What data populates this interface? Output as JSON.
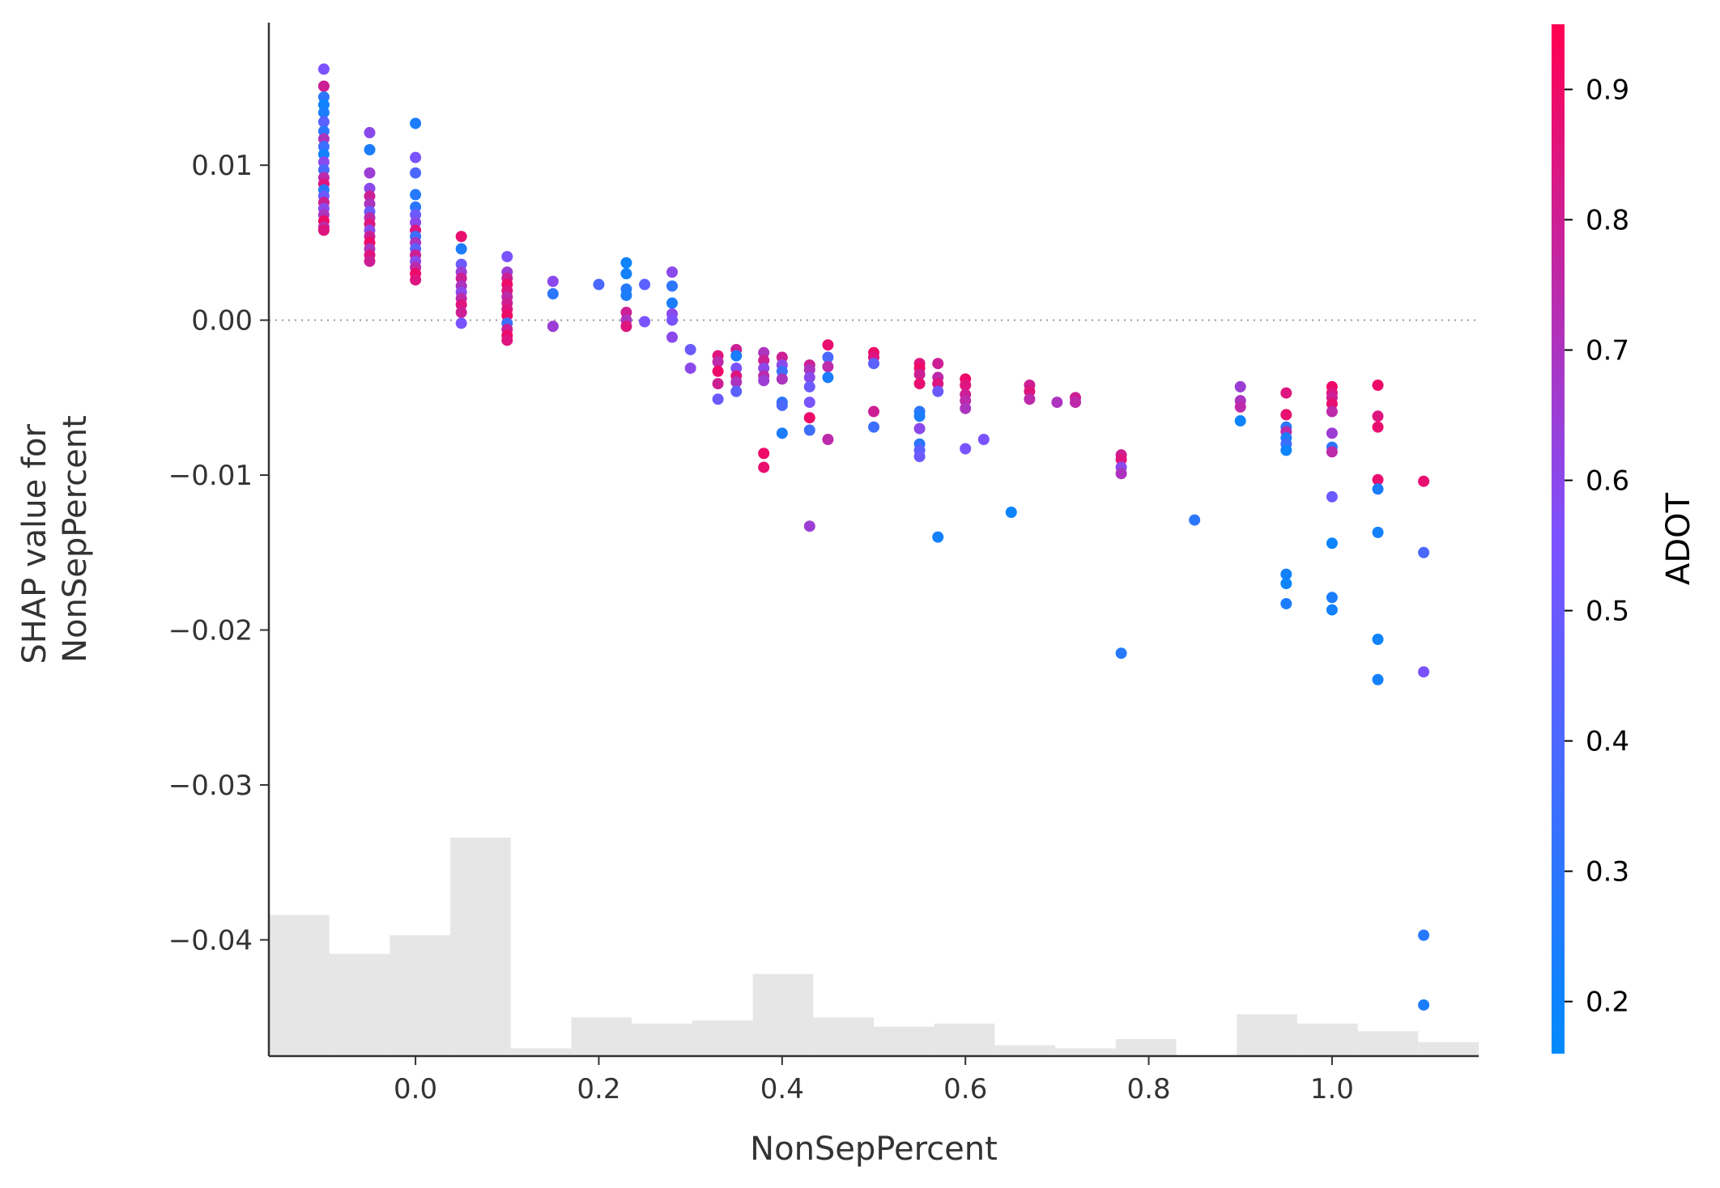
{
  "chart_data": {
    "type": "scatter",
    "xlabel": "NonSepPercent",
    "ylabel_lines": [
      "SHAP value for",
      "NonSepPercent"
    ],
    "xlim": [
      -0.16,
      1.16
    ],
    "ylim": [
      -0.0475,
      0.0192
    ],
    "x_ticks": [
      0.0,
      0.2,
      0.4,
      0.6,
      0.8,
      1.0
    ],
    "x_tick_labels": [
      "0.0",
      "0.2",
      "0.4",
      "0.6",
      "0.8",
      "1.0"
    ],
    "y_ticks": [
      0.01,
      0.0,
      -0.01,
      -0.02,
      -0.03,
      -0.04
    ],
    "y_tick_labels": [
      "0.01",
      "0.00",
      "−0.01",
      "−0.02",
      "−0.03",
      "−0.04"
    ],
    "zero_line": true,
    "colorbar": {
      "label": "ADOT",
      "range": [
        0.16,
        0.95
      ],
      "ticks": [
        0.2,
        0.3,
        0.4,
        0.5,
        0.6,
        0.7,
        0.8,
        0.9
      ],
      "tick_labels": [
        "0.2",
        "0.3",
        "0.4",
        "0.5",
        "0.6",
        "0.7",
        "0.8",
        "0.9"
      ],
      "colors": [
        "#008afb",
        "#7c52ff",
        "#ff0052"
      ]
    },
    "histogram": {
      "bin_edges": [
        -0.16,
        -0.094,
        -0.028,
        0.038,
        0.104,
        0.17,
        0.236,
        0.302,
        0.368,
        0.434,
        0.5,
        0.566,
        0.632,
        0.698,
        0.764,
        0.83,
        0.896,
        0.962,
        1.028,
        1.094,
        1.16
      ],
      "heights": [
        0.0091,
        0.0066,
        0.0078,
        0.0141,
        0.0005,
        0.0025,
        0.0021,
        0.0023,
        0.0053,
        0.0025,
        0.0019,
        0.0021,
        0.0007,
        0.0005,
        0.0011,
        0.0,
        0.0027,
        0.0021,
        0.0016,
        0.0009
      ],
      "base": -0.0475,
      "color": "#e6e6e6"
    },
    "points": [
      {
        "x": -0.1,
        "y": 0.0162,
        "c": 0.55
      },
      {
        "x": -0.1,
        "y": 0.0151,
        "c": 0.8
      },
      {
        "x": -0.1,
        "y": 0.0144,
        "c": 0.3
      },
      {
        "x": -0.1,
        "y": 0.0139,
        "c": 0.2
      },
      {
        "x": -0.1,
        "y": 0.0134,
        "c": 0.25
      },
      {
        "x": -0.1,
        "y": 0.0128,
        "c": 0.45
      },
      {
        "x": -0.1,
        "y": 0.0122,
        "c": 0.3
      },
      {
        "x": -0.1,
        "y": 0.0117,
        "c": 0.7
      },
      {
        "x": -0.1,
        "y": 0.0112,
        "c": 0.35
      },
      {
        "x": -0.1,
        "y": 0.0107,
        "c": 0.22
      },
      {
        "x": -0.1,
        "y": 0.0102,
        "c": 0.6
      },
      {
        "x": -0.1,
        "y": 0.0097,
        "c": 0.4
      },
      {
        "x": -0.1,
        "y": 0.0092,
        "c": 0.75
      },
      {
        "x": -0.1,
        "y": 0.0088,
        "c": 0.85
      },
      {
        "x": -0.1,
        "y": 0.0084,
        "c": 0.28
      },
      {
        "x": -0.1,
        "y": 0.008,
        "c": 0.5
      },
      {
        "x": -0.1,
        "y": 0.0076,
        "c": 0.8
      },
      {
        "x": -0.1,
        "y": 0.0072,
        "c": 0.6
      },
      {
        "x": -0.1,
        "y": 0.0068,
        "c": 0.7
      },
      {
        "x": -0.1,
        "y": 0.0064,
        "c": 0.9
      },
      {
        "x": -0.1,
        "y": 0.006,
        "c": 0.75
      },
      {
        "x": -0.1,
        "y": 0.0058,
        "c": 0.85
      },
      {
        "x": -0.05,
        "y": 0.0121,
        "c": 0.6
      },
      {
        "x": -0.05,
        "y": 0.011,
        "c": 0.25
      },
      {
        "x": -0.05,
        "y": 0.0095,
        "c": 0.65
      },
      {
        "x": -0.05,
        "y": 0.0085,
        "c": 0.6
      },
      {
        "x": -0.05,
        "y": 0.008,
        "c": 0.8
      },
      {
        "x": -0.05,
        "y": 0.0075,
        "c": 0.7
      },
      {
        "x": -0.05,
        "y": 0.007,
        "c": 0.5
      },
      {
        "x": -0.05,
        "y": 0.0066,
        "c": 0.75
      },
      {
        "x": -0.05,
        "y": 0.0062,
        "c": 0.85
      },
      {
        "x": -0.05,
        "y": 0.0058,
        "c": 0.6
      },
      {
        "x": -0.05,
        "y": 0.0054,
        "c": 0.8
      },
      {
        "x": -0.05,
        "y": 0.005,
        "c": 0.9
      },
      {
        "x": -0.05,
        "y": 0.0046,
        "c": 0.7
      },
      {
        "x": -0.05,
        "y": 0.0042,
        "c": 0.85
      },
      {
        "x": -0.05,
        "y": 0.0038,
        "c": 0.8
      },
      {
        "x": 0.0,
        "y": 0.0127,
        "c": 0.25
      },
      {
        "x": 0.0,
        "y": 0.0105,
        "c": 0.55
      },
      {
        "x": 0.0,
        "y": 0.0095,
        "c": 0.4
      },
      {
        "x": 0.0,
        "y": 0.0081,
        "c": 0.28
      },
      {
        "x": 0.0,
        "y": 0.0073,
        "c": 0.3
      },
      {
        "x": 0.0,
        "y": 0.0068,
        "c": 0.5
      },
      {
        "x": 0.0,
        "y": 0.0063,
        "c": 0.6
      },
      {
        "x": 0.0,
        "y": 0.0058,
        "c": 0.85
      },
      {
        "x": 0.0,
        "y": 0.0054,
        "c": 0.35
      },
      {
        "x": 0.0,
        "y": 0.005,
        "c": 0.7
      },
      {
        "x": 0.0,
        "y": 0.0046,
        "c": 0.45
      },
      {
        "x": 0.0,
        "y": 0.0042,
        "c": 0.8
      },
      {
        "x": 0.0,
        "y": 0.0038,
        "c": 0.6
      },
      {
        "x": 0.0,
        "y": 0.0034,
        "c": 0.75
      },
      {
        "x": 0.0,
        "y": 0.003,
        "c": 0.9
      },
      {
        "x": 0.0,
        "y": 0.0026,
        "c": 0.85
      },
      {
        "x": 0.05,
        "y": 0.0054,
        "c": 0.88
      },
      {
        "x": 0.05,
        "y": 0.0046,
        "c": 0.25
      },
      {
        "x": 0.05,
        "y": 0.0036,
        "c": 0.5
      },
      {
        "x": 0.05,
        "y": 0.0031,
        "c": 0.65
      },
      {
        "x": 0.05,
        "y": 0.0027,
        "c": 0.8
      },
      {
        "x": 0.05,
        "y": 0.0022,
        "c": 0.7
      },
      {
        "x": 0.05,
        "y": 0.0018,
        "c": 0.6
      },
      {
        "x": 0.05,
        "y": 0.0014,
        "c": 0.75
      },
      {
        "x": 0.05,
        "y": 0.001,
        "c": 0.85
      },
      {
        "x": 0.05,
        "y": 0.0005,
        "c": 0.8
      },
      {
        "x": 0.05,
        "y": -0.0002,
        "c": 0.55
      },
      {
        "x": 0.1,
        "y": 0.0041,
        "c": 0.55
      },
      {
        "x": 0.1,
        "y": 0.0031,
        "c": 0.65
      },
      {
        "x": 0.1,
        "y": 0.0027,
        "c": 0.8
      },
      {
        "x": 0.1,
        "y": 0.0023,
        "c": 0.9
      },
      {
        "x": 0.1,
        "y": 0.0019,
        "c": 0.85
      },
      {
        "x": 0.1,
        "y": 0.0015,
        "c": 0.75
      },
      {
        "x": 0.1,
        "y": 0.0011,
        "c": 0.8
      },
      {
        "x": 0.1,
        "y": 0.0007,
        "c": 0.85
      },
      {
        "x": 0.1,
        "y": 0.0003,
        "c": 0.9
      },
      {
        "x": 0.1,
        "y": -0.0002,
        "c": 0.35
      },
      {
        "x": 0.1,
        "y": -0.0006,
        "c": 0.8
      },
      {
        "x": 0.1,
        "y": -0.001,
        "c": 0.9
      },
      {
        "x": 0.1,
        "y": -0.0013,
        "c": 0.85
      },
      {
        "x": 0.15,
        "y": 0.0025,
        "c": 0.6
      },
      {
        "x": 0.15,
        "y": 0.0017,
        "c": 0.3
      },
      {
        "x": 0.15,
        "y": -0.0004,
        "c": 0.65
      },
      {
        "x": 0.2,
        "y": 0.0023,
        "c": 0.4
      },
      {
        "x": 0.23,
        "y": 0.0037,
        "c": 0.2
      },
      {
        "x": 0.23,
        "y": 0.003,
        "c": 0.22
      },
      {
        "x": 0.23,
        "y": 0.002,
        "c": 0.28
      },
      {
        "x": 0.23,
        "y": 0.0016,
        "c": 0.25
      },
      {
        "x": 0.23,
        "y": 0.0005,
        "c": 0.8
      },
      {
        "x": 0.23,
        "y": 0.0,
        "c": 0.7
      },
      {
        "x": 0.23,
        "y": -0.0004,
        "c": 0.85
      },
      {
        "x": 0.25,
        "y": 0.0023,
        "c": 0.45
      },
      {
        "x": 0.25,
        "y": -0.0001,
        "c": 0.55
      },
      {
        "x": 0.28,
        "y": 0.0031,
        "c": 0.6
      },
      {
        "x": 0.28,
        "y": 0.0022,
        "c": 0.3
      },
      {
        "x": 0.28,
        "y": 0.0011,
        "c": 0.25
      },
      {
        "x": 0.28,
        "y": 0.0004,
        "c": 0.6
      },
      {
        "x": 0.28,
        "y": 0.0,
        "c": 0.55
      },
      {
        "x": 0.28,
        "y": -0.0011,
        "c": 0.6
      },
      {
        "x": 0.3,
        "y": -0.0019,
        "c": 0.5
      },
      {
        "x": 0.3,
        "y": -0.0031,
        "c": 0.6
      },
      {
        "x": 0.33,
        "y": -0.0023,
        "c": 0.85
      },
      {
        "x": 0.33,
        "y": -0.0027,
        "c": 0.75
      },
      {
        "x": 0.33,
        "y": -0.0033,
        "c": 0.9
      },
      {
        "x": 0.33,
        "y": -0.0041,
        "c": 0.8
      },
      {
        "x": 0.33,
        "y": -0.0051,
        "c": 0.5
      },
      {
        "x": 0.35,
        "y": -0.0019,
        "c": 0.8
      },
      {
        "x": 0.35,
        "y": -0.0023,
        "c": 0.25
      },
      {
        "x": 0.35,
        "y": -0.0031,
        "c": 0.55
      },
      {
        "x": 0.35,
        "y": -0.0036,
        "c": 0.85
      },
      {
        "x": 0.35,
        "y": -0.004,
        "c": 0.7
      },
      {
        "x": 0.35,
        "y": -0.0046,
        "c": 0.45
      },
      {
        "x": 0.38,
        "y": -0.0021,
        "c": 0.7
      },
      {
        "x": 0.38,
        "y": -0.0026,
        "c": 0.8
      },
      {
        "x": 0.38,
        "y": -0.0031,
        "c": 0.6
      },
      {
        "x": 0.38,
        "y": -0.0036,
        "c": 0.75
      },
      {
        "x": 0.38,
        "y": -0.0039,
        "c": 0.65
      },
      {
        "x": 0.38,
        "y": -0.0086,
        "c": 0.9
      },
      {
        "x": 0.38,
        "y": -0.0095,
        "c": 0.88
      },
      {
        "x": 0.4,
        "y": -0.0024,
        "c": 0.8
      },
      {
        "x": 0.4,
        "y": -0.0029,
        "c": 0.6
      },
      {
        "x": 0.4,
        "y": -0.0033,
        "c": 0.35
      },
      {
        "x": 0.4,
        "y": -0.0038,
        "c": 0.7
      },
      {
        "x": 0.4,
        "y": -0.0053,
        "c": 0.3
      },
      {
        "x": 0.4,
        "y": -0.0055,
        "c": 0.4
      },
      {
        "x": 0.4,
        "y": -0.0073,
        "c": 0.25
      },
      {
        "x": 0.43,
        "y": -0.0029,
        "c": 0.8
      },
      {
        "x": 0.43,
        "y": -0.0032,
        "c": 0.7
      },
      {
        "x": 0.43,
        "y": -0.0037,
        "c": 0.6
      },
      {
        "x": 0.43,
        "y": -0.0043,
        "c": 0.5
      },
      {
        "x": 0.43,
        "y": -0.0053,
        "c": 0.55
      },
      {
        "x": 0.43,
        "y": -0.0063,
        "c": 0.9
      },
      {
        "x": 0.43,
        "y": -0.0071,
        "c": 0.35
      },
      {
        "x": 0.43,
        "y": -0.0133,
        "c": 0.65
      },
      {
        "x": 0.45,
        "y": -0.0016,
        "c": 0.88
      },
      {
        "x": 0.45,
        "y": -0.0024,
        "c": 0.4
      },
      {
        "x": 0.45,
        "y": -0.003,
        "c": 0.75
      },
      {
        "x": 0.45,
        "y": -0.0037,
        "c": 0.25
      },
      {
        "x": 0.45,
        "y": -0.0077,
        "c": 0.75
      },
      {
        "x": 0.5,
        "y": -0.0021,
        "c": 0.9
      },
      {
        "x": 0.5,
        "y": -0.0024,
        "c": 0.85
      },
      {
        "x": 0.5,
        "y": -0.0028,
        "c": 0.45
      },
      {
        "x": 0.5,
        "y": -0.0059,
        "c": 0.8
      },
      {
        "x": 0.5,
        "y": -0.0069,
        "c": 0.35
      },
      {
        "x": 0.55,
        "y": -0.0028,
        "c": 0.85
      },
      {
        "x": 0.55,
        "y": -0.0031,
        "c": 0.9
      },
      {
        "x": 0.55,
        "y": -0.0035,
        "c": 0.8
      },
      {
        "x": 0.55,
        "y": -0.0041,
        "c": 0.88
      },
      {
        "x": 0.55,
        "y": -0.0059,
        "c": 0.3
      },
      {
        "x": 0.55,
        "y": -0.0062,
        "c": 0.25
      },
      {
        "x": 0.55,
        "y": -0.007,
        "c": 0.6
      },
      {
        "x": 0.55,
        "y": -0.008,
        "c": 0.3
      },
      {
        "x": 0.55,
        "y": -0.0084,
        "c": 0.45
      },
      {
        "x": 0.55,
        "y": -0.0088,
        "c": 0.5
      },
      {
        "x": 0.57,
        "y": -0.0028,
        "c": 0.8
      },
      {
        "x": 0.57,
        "y": -0.0037,
        "c": 0.75
      },
      {
        "x": 0.57,
        "y": -0.0041,
        "c": 0.85
      },
      {
        "x": 0.57,
        "y": -0.0046,
        "c": 0.5
      },
      {
        "x": 0.57,
        "y": -0.014,
        "c": 0.22
      },
      {
        "x": 0.6,
        "y": -0.0038,
        "c": 0.9
      },
      {
        "x": 0.6,
        "y": -0.0042,
        "c": 0.85
      },
      {
        "x": 0.6,
        "y": -0.0048,
        "c": 0.8
      },
      {
        "x": 0.6,
        "y": -0.0052,
        "c": 0.75
      },
      {
        "x": 0.6,
        "y": -0.0057,
        "c": 0.7
      },
      {
        "x": 0.6,
        "y": -0.0083,
        "c": 0.55
      },
      {
        "x": 0.62,
        "y": -0.0077,
        "c": 0.55
      },
      {
        "x": 0.65,
        "y": -0.0124,
        "c": 0.2
      },
      {
        "x": 0.67,
        "y": -0.0042,
        "c": 0.8
      },
      {
        "x": 0.67,
        "y": -0.0046,
        "c": 0.85
      },
      {
        "x": 0.67,
        "y": -0.0051,
        "c": 0.75
      },
      {
        "x": 0.7,
        "y": -0.0053,
        "c": 0.7
      },
      {
        "x": 0.72,
        "y": -0.005,
        "c": 0.8
      },
      {
        "x": 0.72,
        "y": -0.0053,
        "c": 0.75
      },
      {
        "x": 0.77,
        "y": -0.0087,
        "c": 0.8
      },
      {
        "x": 0.77,
        "y": -0.009,
        "c": 0.85
      },
      {
        "x": 0.77,
        "y": -0.0095,
        "c": 0.6
      },
      {
        "x": 0.77,
        "y": -0.0099,
        "c": 0.7
      },
      {
        "x": 0.77,
        "y": -0.0215,
        "c": 0.28
      },
      {
        "x": 0.85,
        "y": -0.0129,
        "c": 0.3
      },
      {
        "x": 0.9,
        "y": -0.0043,
        "c": 0.65
      },
      {
        "x": 0.9,
        "y": -0.0052,
        "c": 0.7
      },
      {
        "x": 0.9,
        "y": -0.0056,
        "c": 0.75
      },
      {
        "x": 0.9,
        "y": -0.0065,
        "c": 0.2
      },
      {
        "x": 0.95,
        "y": -0.0047,
        "c": 0.85
      },
      {
        "x": 0.95,
        "y": -0.0061,
        "c": 0.88
      },
      {
        "x": 0.95,
        "y": -0.0069,
        "c": 0.3
      },
      {
        "x": 0.95,
        "y": -0.0072,
        "c": 0.75
      },
      {
        "x": 0.95,
        "y": -0.0076,
        "c": 0.25
      },
      {
        "x": 0.95,
        "y": -0.008,
        "c": 0.35
      },
      {
        "x": 0.95,
        "y": -0.0084,
        "c": 0.2
      },
      {
        "x": 0.95,
        "y": -0.0164,
        "c": 0.22
      },
      {
        "x": 0.95,
        "y": -0.017,
        "c": 0.2
      },
      {
        "x": 0.95,
        "y": -0.0183,
        "c": 0.25
      },
      {
        "x": 1.0,
        "y": -0.0043,
        "c": 0.9
      },
      {
        "x": 1.0,
        "y": -0.0047,
        "c": 0.85
      },
      {
        "x": 1.0,
        "y": -0.005,
        "c": 0.8
      },
      {
        "x": 1.0,
        "y": -0.0054,
        "c": 0.88
      },
      {
        "x": 1.0,
        "y": -0.0059,
        "c": 0.75
      },
      {
        "x": 1.0,
        "y": -0.0073,
        "c": 0.65
      },
      {
        "x": 1.0,
        "y": -0.0082,
        "c": 0.3
      },
      {
        "x": 1.0,
        "y": -0.0085,
        "c": 0.75
      },
      {
        "x": 1.0,
        "y": -0.0114,
        "c": 0.5
      },
      {
        "x": 1.0,
        "y": -0.0144,
        "c": 0.2
      },
      {
        "x": 1.0,
        "y": -0.0179,
        "c": 0.25
      },
      {
        "x": 1.0,
        "y": -0.0187,
        "c": 0.22
      },
      {
        "x": 1.05,
        "y": -0.0042,
        "c": 0.9
      },
      {
        "x": 1.05,
        "y": -0.0062,
        "c": 0.85
      },
      {
        "x": 1.05,
        "y": -0.0069,
        "c": 0.88
      },
      {
        "x": 1.05,
        "y": -0.0103,
        "c": 0.88
      },
      {
        "x": 1.05,
        "y": -0.0109,
        "c": 0.25
      },
      {
        "x": 1.05,
        "y": -0.0137,
        "c": 0.22
      },
      {
        "x": 1.05,
        "y": -0.0206,
        "c": 0.2
      },
      {
        "x": 1.05,
        "y": -0.0232,
        "c": 0.22
      },
      {
        "x": 1.1,
        "y": -0.0104,
        "c": 0.88
      },
      {
        "x": 1.1,
        "y": -0.015,
        "c": 0.4
      },
      {
        "x": 1.1,
        "y": -0.0227,
        "c": 0.55
      },
      {
        "x": 1.1,
        "y": -0.0397,
        "c": 0.28
      },
      {
        "x": 1.1,
        "y": -0.0442,
        "c": 0.25
      }
    ]
  }
}
